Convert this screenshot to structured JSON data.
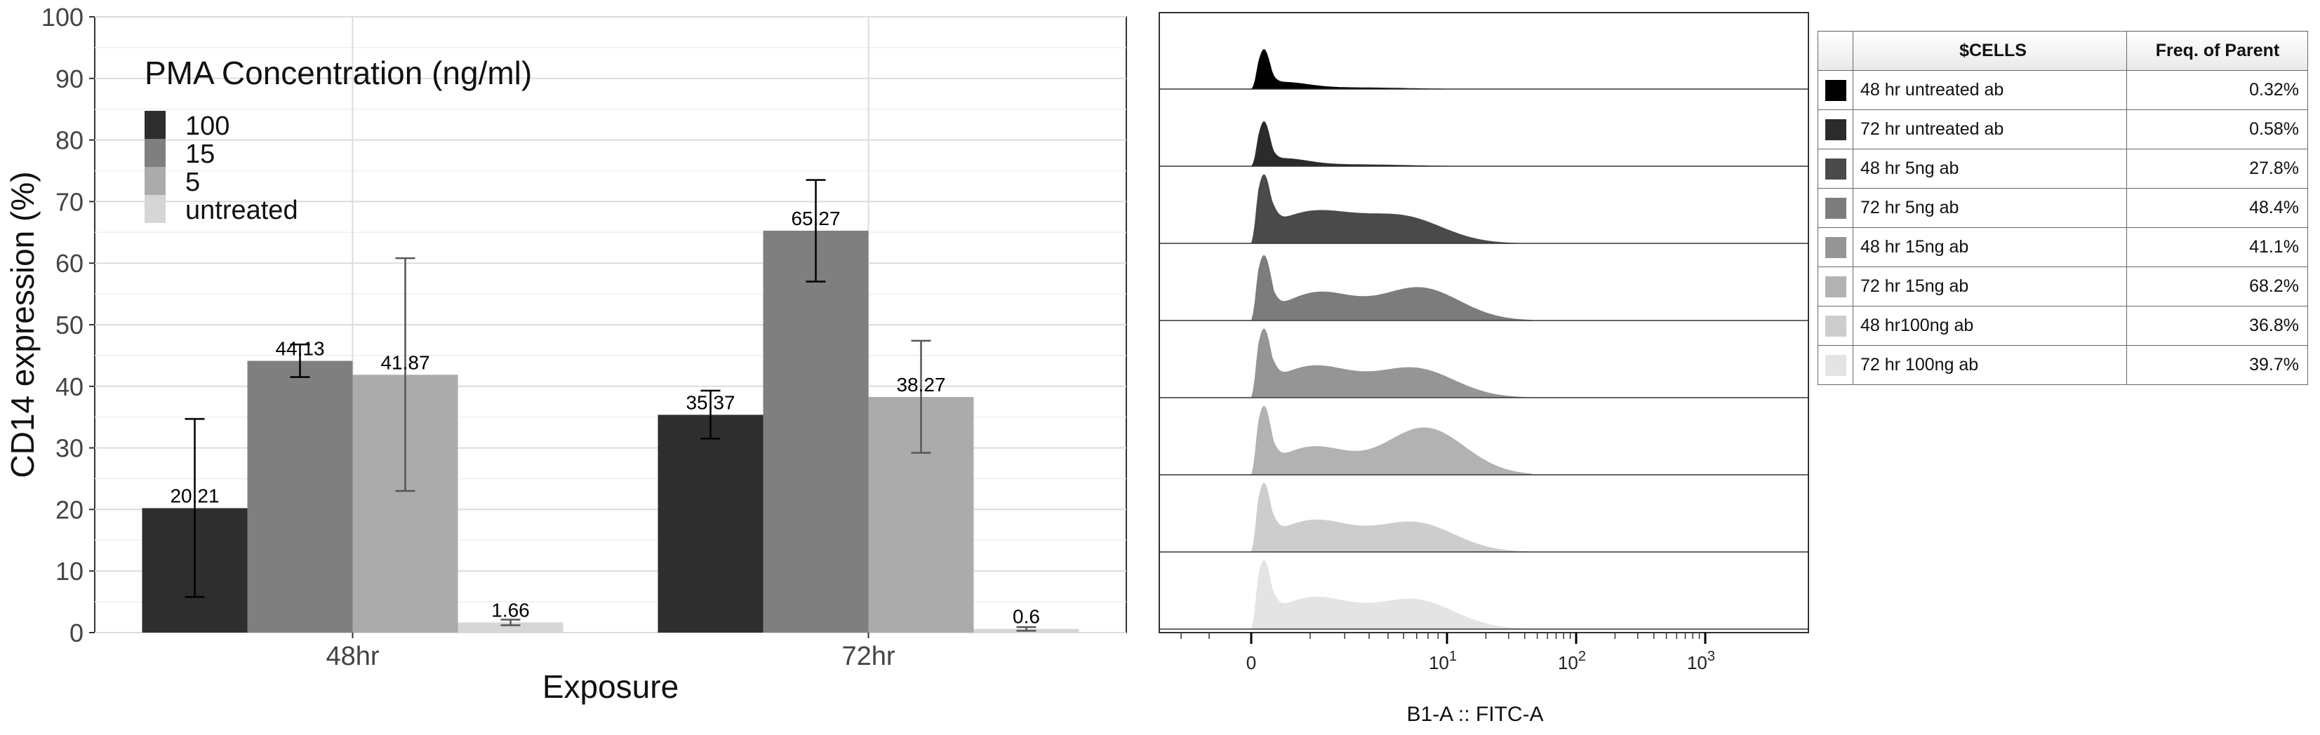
{
  "chart_data": [
    {
      "type": "bar",
      "title": "",
      "xlabel": "Exposure",
      "ylabel": "CD14 expression (%)",
      "ylim": [
        0,
        100
      ],
      "yticks": [
        "0",
        "10",
        "20",
        "30",
        "40",
        "50",
        "60",
        "70",
        "80",
        "90",
        "100"
      ],
      "categories": [
        "48hr",
        "72hr"
      ],
      "legend_title": "PMA Concentration (ng/ml)",
      "legend_position": "top-left",
      "series": [
        {
          "name": "100",
          "color": "#2e2e2e",
          "values": [
            20.21,
            35.37
          ],
          "labels": [
            "20.21",
            "35.37"
          ],
          "err_low": [
            5.8,
            31.5
          ],
          "err_high": [
            34.7,
            39.3
          ]
        },
        {
          "name": "15",
          "color": "#7f7f7f",
          "values": [
            44.13,
            65.27
          ],
          "labels": [
            "44.13",
            "65.27"
          ],
          "err_low": [
            41.5,
            57.0
          ],
          "err_high": [
            46.8,
            73.5
          ]
        },
        {
          "name": "5",
          "color": "#ababab",
          "values": [
            41.87,
            38.27
          ],
          "labels": [
            "41.87",
            "38.27"
          ],
          "err_low": [
            23.0,
            29.2
          ],
          "err_high": [
            60.8,
            47.4
          ]
        },
        {
          "name": "untreated",
          "color": "#d6d6d6",
          "values": [
            1.66,
            0.6
          ],
          "labels": [
            "1.66",
            "0.6"
          ],
          "err_low": [
            1.2,
            0.3
          ],
          "err_high": [
            2.1,
            0.9
          ]
        }
      ]
    },
    {
      "type": "area",
      "subtype": "staggered histogram",
      "xlabel": "B1-A :: FITC-A",
      "xticks": [
        {
          "base": "0",
          "exp": ""
        },
        {
          "base": "10",
          "exp": "1"
        },
        {
          "base": "10",
          "exp": "2"
        },
        {
          "base": "10",
          "exp": "3"
        }
      ],
      "legend": {
        "headers": [
          "$CELLS",
          "Freq. of Parent"
        ],
        "rows": [
          {
            "name": "48 hr untreated ab",
            "freq": "0.32%",
            "color": "#000000",
            "peak": 0.55,
            "profile": "narrow"
          },
          {
            "name": "72 hr untreated ab",
            "freq": "0.58%",
            "color": "#2b2b2b",
            "peak": 0.62,
            "profile": "narrow"
          },
          {
            "name": "48 hr 5ng ab",
            "freq": "27.8%",
            "color": "#4a4a4a",
            "peak": 0.95,
            "profile": "shoulder-low"
          },
          {
            "name": "72 hr 5ng ab",
            "freq": "48.4%",
            "color": "#7c7c7c",
            "peak": 0.9,
            "profile": "shoulder-high"
          },
          {
            "name": "48 hr 15ng ab",
            "freq": "41.1%",
            "color": "#959595",
            "peak": 0.95,
            "profile": "shoulder-mid"
          },
          {
            "name": "72 hr 15ng ab",
            "freq": "68.2%",
            "color": "#b2b2b2",
            "peak": 0.95,
            "profile": "shoulder-top"
          },
          {
            "name": "48 hr100ng ab",
            "freq": "36.8%",
            "color": "#cdcdcd",
            "peak": 0.95,
            "profile": "shoulder-mid"
          },
          {
            "name": "72 hr 100ng ab",
            "freq": "39.7%",
            "color": "#e4e4e4",
            "peak": 0.95,
            "profile": "shoulder-mid"
          }
        ]
      }
    }
  ]
}
